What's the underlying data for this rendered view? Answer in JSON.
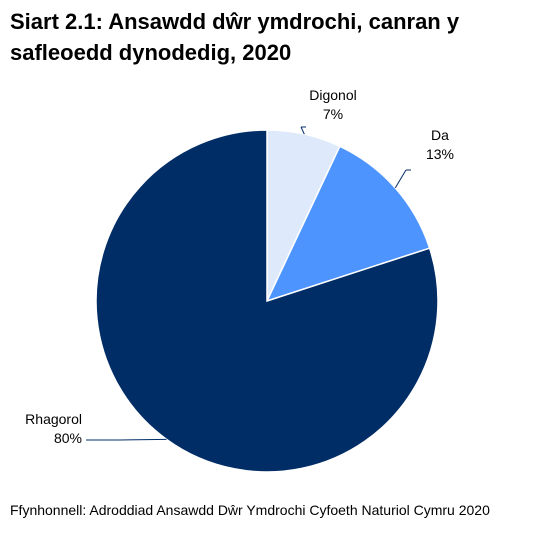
{
  "chart_data": {
    "type": "pie",
    "title": "Siart 2.1: Ansawdd dŵr ymdrochi, canran y safleoedd dynodedig, 2020",
    "slices": [
      {
        "label": "Digonol",
        "value": 7,
        "display": "7%",
        "color": "#deeafc"
      },
      {
        "label": "Da",
        "value": 13,
        "display": "13%",
        "color": "#4d94ff"
      },
      {
        "label": "Rhagorol",
        "value": 80,
        "display": "80%",
        "color": "#002d66"
      }
    ],
    "source": "Ffynhonnell: Adroddiad Ansawdd Dŵr Ymdrochi Cyfoeth Naturiol Cymru 2020"
  }
}
